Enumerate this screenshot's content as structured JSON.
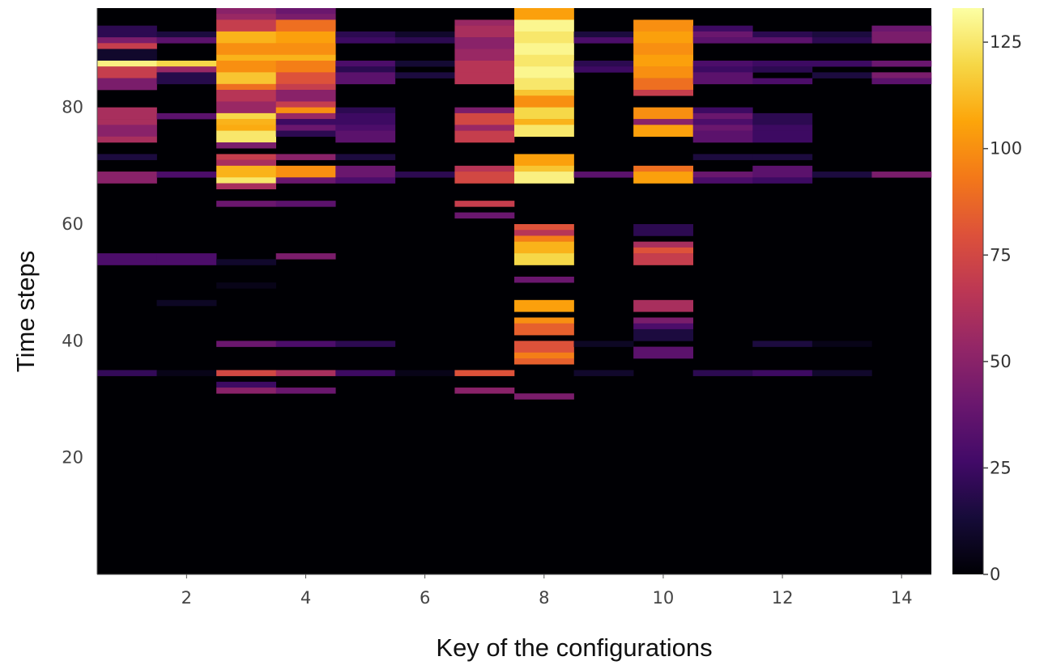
{
  "chart_data": {
    "type": "heatmap",
    "xlabel": "Key of the configurations",
    "ylabel": "Time steps",
    "x_range": [
      1,
      14
    ],
    "y_range": [
      0,
      97
    ],
    "x_ticks": [
      2,
      4,
      6,
      8,
      10,
      12,
      14
    ],
    "y_ticks": [
      20,
      40,
      60,
      80
    ],
    "colorbar": {
      "colormap": "inferno",
      "range": [
        0,
        133
      ],
      "ticks": [
        0,
        25,
        50,
        75,
        100,
        125
      ]
    },
    "background_value": 0,
    "cells": [
      {
        "x": 1,
        "rows": [
          [
            94,
            92,
            20
          ],
          [
            92,
            91,
            45
          ],
          [
            91,
            90,
            70
          ],
          [
            90,
            88,
            10
          ],
          [
            88,
            87,
            128
          ],
          [
            87,
            85,
            70
          ],
          [
            85,
            83,
            45
          ],
          [
            80,
            78,
            60
          ],
          [
            78,
            77,
            60
          ],
          [
            77,
            75,
            50
          ],
          [
            75,
            74,
            60
          ],
          [
            72,
            71,
            15
          ],
          [
            69,
            67,
            50
          ],
          [
            55,
            53,
            30
          ],
          [
            35,
            34,
            22
          ]
        ]
      },
      {
        "x": 2,
        "rows": [
          [
            93,
            92,
            15
          ],
          [
            92,
            91,
            35
          ],
          [
            88,
            87,
            120
          ],
          [
            87,
            86,
            55
          ],
          [
            86,
            84,
            18
          ],
          [
            79,
            78,
            35
          ],
          [
            69,
            68,
            30
          ],
          [
            55,
            53,
            30
          ],
          [
            47,
            46,
            8
          ],
          [
            35,
            34,
            5
          ]
        ]
      },
      {
        "x": 3,
        "rows": [
          [
            97,
            96,
            50
          ],
          [
            96,
            95,
            55
          ],
          [
            95,
            93,
            70
          ],
          [
            93,
            91,
            110
          ],
          [
            91,
            89,
            100
          ],
          [
            89,
            88,
            110
          ],
          [
            88,
            86,
            100
          ],
          [
            86,
            84,
            115
          ],
          [
            84,
            83,
            90
          ],
          [
            83,
            81,
            65
          ],
          [
            81,
            79,
            55
          ],
          [
            79,
            78,
            120
          ],
          [
            78,
            77,
            110
          ],
          [
            77,
            76,
            108
          ],
          [
            76,
            74,
            125
          ],
          [
            74,
            73,
            45
          ],
          [
            72,
            71,
            70
          ],
          [
            71,
            70,
            60
          ],
          [
            70,
            68,
            110
          ],
          [
            68,
            67,
            125
          ],
          [
            67,
            66,
            60
          ],
          [
            64,
            63,
            40
          ],
          [
            54,
            53,
            10
          ],
          [
            50,
            49,
            5
          ],
          [
            40,
            39,
            40
          ],
          [
            35,
            34,
            75
          ],
          [
            33,
            32,
            25
          ],
          [
            32,
            31,
            50
          ]
        ]
      },
      {
        "x": 4,
        "rows": [
          [
            97,
            96,
            40
          ],
          [
            96,
            95,
            45
          ],
          [
            95,
            93,
            90
          ],
          [
            93,
            91,
            105
          ],
          [
            91,
            89,
            100
          ],
          [
            89,
            88,
            110
          ],
          [
            88,
            86,
            95
          ],
          [
            86,
            84,
            80
          ],
          [
            84,
            83,
            70
          ],
          [
            83,
            81,
            50
          ],
          [
            81,
            80,
            70
          ],
          [
            80,
            79,
            100
          ],
          [
            79,
            78,
            55
          ],
          [
            78,
            77,
            25
          ],
          [
            77,
            76,
            40
          ],
          [
            76,
            75,
            20
          ],
          [
            72,
            71,
            50
          ],
          [
            70,
            68,
            100
          ],
          [
            68,
            67,
            40
          ],
          [
            64,
            63,
            35
          ],
          [
            55,
            54,
            45
          ],
          [
            40,
            39,
            30
          ],
          [
            35,
            34,
            60
          ],
          [
            32,
            31,
            40
          ]
        ]
      },
      {
        "x": 5,
        "rows": [
          [
            93,
            92,
            20
          ],
          [
            92,
            91,
            25
          ],
          [
            88,
            87,
            30
          ],
          [
            87,
            86,
            20
          ],
          [
            86,
            84,
            35
          ],
          [
            80,
            79,
            20
          ],
          [
            79,
            77,
            25
          ],
          [
            77,
            76,
            30
          ],
          [
            76,
            74,
            35
          ],
          [
            72,
            71,
            15
          ],
          [
            70,
            68,
            40
          ],
          [
            68,
            67,
            30
          ],
          [
            40,
            39,
            20
          ],
          [
            35,
            34,
            25
          ]
        ]
      },
      {
        "x": 6,
        "rows": [
          [
            93,
            92,
            10
          ],
          [
            92,
            91,
            20
          ],
          [
            88,
            87,
            12
          ],
          [
            86,
            85,
            15
          ],
          [
            69,
            68,
            20
          ],
          [
            35,
            34,
            5
          ]
        ]
      },
      {
        "x": 7,
        "rows": [
          [
            95,
            94,
            55
          ],
          [
            94,
            92,
            60
          ],
          [
            92,
            90,
            50
          ],
          [
            90,
            88,
            55
          ],
          [
            88,
            86,
            65
          ],
          [
            86,
            84,
            65
          ],
          [
            80,
            79,
            45
          ],
          [
            79,
            77,
            75
          ],
          [
            77,
            76,
            55
          ],
          [
            76,
            74,
            70
          ],
          [
            70,
            69,
            65
          ],
          [
            69,
            67,
            75
          ],
          [
            64,
            63,
            70
          ],
          [
            62,
            61,
            40
          ],
          [
            35,
            34,
            80
          ],
          [
            32,
            31,
            50
          ]
        ]
      },
      {
        "x": 8,
        "rows": [
          [
            97,
            95,
            105
          ],
          [
            95,
            93,
            130
          ],
          [
            93,
            91,
            125
          ],
          [
            91,
            89,
            130
          ],
          [
            89,
            87,
            125
          ],
          [
            87,
            85,
            130
          ],
          [
            85,
            83,
            125
          ],
          [
            83,
            82,
            115
          ],
          [
            82,
            80,
            100
          ],
          [
            80,
            78,
            120
          ],
          [
            78,
            77,
            110
          ],
          [
            77,
            75,
            125
          ],
          [
            72,
            70,
            105
          ],
          [
            70,
            69,
            115
          ],
          [
            69,
            67,
            128
          ],
          [
            60,
            59,
            80
          ],
          [
            59,
            58,
            65
          ],
          [
            58,
            57,
            95
          ],
          [
            57,
            55,
            110
          ],
          [
            55,
            53,
            120
          ],
          [
            51,
            50,
            40
          ],
          [
            47,
            45,
            105
          ],
          [
            44,
            43,
            100
          ],
          [
            43,
            41,
            85
          ],
          [
            40,
            38,
            80
          ],
          [
            38,
            37,
            95
          ],
          [
            37,
            36,
            85
          ],
          [
            31,
            30,
            45
          ]
        ]
      },
      {
        "x": 9,
        "rows": [
          [
            93,
            92,
            15
          ],
          [
            92,
            91,
            30
          ],
          [
            88,
            87,
            20
          ],
          [
            87,
            86,
            25
          ],
          [
            69,
            68,
            35
          ],
          [
            40,
            39,
            8
          ],
          [
            35,
            34,
            10
          ]
        ]
      },
      {
        "x": 10,
        "rows": [
          [
            95,
            93,
            100
          ],
          [
            93,
            91,
            105
          ],
          [
            91,
            89,
            100
          ],
          [
            89,
            87,
            105
          ],
          [
            87,
            85,
            100
          ],
          [
            85,
            83,
            90
          ],
          [
            83,
            82,
            70
          ],
          [
            80,
            78,
            100
          ],
          [
            78,
            77,
            50
          ],
          [
            77,
            75,
            105
          ],
          [
            70,
            69,
            90
          ],
          [
            69,
            67,
            105
          ],
          [
            60,
            58,
            20
          ],
          [
            57,
            56,
            60
          ],
          [
            56,
            55,
            80
          ],
          [
            55,
            53,
            70
          ],
          [
            47,
            45,
            60
          ],
          [
            44,
            43,
            45
          ],
          [
            43,
            42,
            30
          ],
          [
            42,
            40,
            15
          ],
          [
            39,
            37,
            35
          ]
        ]
      },
      {
        "x": 11,
        "rows": [
          [
            94,
            93,
            25
          ],
          [
            93,
            92,
            40
          ],
          [
            92,
            91,
            35
          ],
          [
            88,
            87,
            30
          ],
          [
            87,
            86,
            25
          ],
          [
            86,
            84,
            35
          ],
          [
            80,
            79,
            25
          ],
          [
            79,
            78,
            40
          ],
          [
            78,
            77,
            30
          ],
          [
            77,
            76,
            40
          ],
          [
            76,
            74,
            35
          ],
          [
            72,
            71,
            15
          ],
          [
            69,
            68,
            40
          ],
          [
            68,
            67,
            30
          ],
          [
            35,
            34,
            20
          ]
        ]
      },
      {
        "x": 12,
        "rows": [
          [
            93,
            92,
            20
          ],
          [
            92,
            91,
            35
          ],
          [
            88,
            87,
            25
          ],
          [
            87,
            86,
            20
          ],
          [
            85,
            84,
            30
          ],
          [
            79,
            77,
            20
          ],
          [
            77,
            76,
            25
          ],
          [
            76,
            74,
            25
          ],
          [
            72,
            71,
            15
          ],
          [
            70,
            68,
            35
          ],
          [
            68,
            67,
            25
          ],
          [
            40,
            39,
            15
          ],
          [
            35,
            34,
            25
          ]
        ]
      },
      {
        "x": 13,
        "rows": [
          [
            93,
            92,
            15
          ],
          [
            92,
            91,
            20
          ],
          [
            88,
            87,
            25
          ],
          [
            86,
            85,
            15
          ],
          [
            69,
            68,
            15
          ],
          [
            40,
            39,
            5
          ],
          [
            35,
            34,
            10
          ]
        ]
      },
      {
        "x": 14,
        "rows": [
          [
            94,
            93,
            40
          ],
          [
            93,
            91,
            45
          ],
          [
            88,
            87,
            40
          ],
          [
            86,
            85,
            45
          ],
          [
            85,
            84,
            35
          ],
          [
            69,
            68,
            45
          ]
        ]
      }
    ]
  }
}
